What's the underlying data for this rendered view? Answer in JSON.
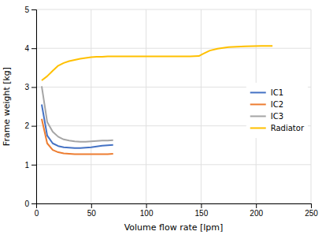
{
  "chart_data": {
    "type": "line",
    "xlabel": "Volume flow rate [lpm]",
    "ylabel": "Frame weight [kg]",
    "xlim": [
      0,
      250
    ],
    "ylim": [
      0,
      5
    ],
    "xticks": [
      0,
      50,
      100,
      150,
      200,
      250
    ],
    "yticks": [
      0,
      1,
      2,
      3,
      4,
      5
    ],
    "grid": true,
    "legend": "right",
    "series": [
      {
        "name": "IC1",
        "color": "#4472c4",
        "x": [
          5,
          10,
          15,
          20,
          25,
          30,
          35,
          40,
          45,
          50,
          55,
          60,
          65,
          70
        ],
        "values": [
          2.55,
          1.75,
          1.55,
          1.48,
          1.45,
          1.44,
          1.43,
          1.43,
          1.44,
          1.45,
          1.47,
          1.49,
          1.5,
          1.51
        ]
      },
      {
        "name": "IC2",
        "color": "#ed7d31",
        "x": [
          5,
          10,
          15,
          20,
          25,
          30,
          35,
          40,
          45,
          50,
          55,
          60,
          65,
          70
        ],
        "values": [
          2.18,
          1.55,
          1.38,
          1.32,
          1.29,
          1.28,
          1.27,
          1.27,
          1.27,
          1.27,
          1.27,
          1.27,
          1.27,
          1.28
        ]
      },
      {
        "name": "IC3",
        "color": "#a5a5a5",
        "x": [
          5,
          10,
          15,
          20,
          25,
          30,
          35,
          40,
          45,
          50,
          55,
          60,
          65,
          70
        ],
        "values": [
          3.02,
          2.1,
          1.85,
          1.72,
          1.65,
          1.62,
          1.6,
          1.59,
          1.59,
          1.6,
          1.61,
          1.62,
          1.62,
          1.63
        ]
      },
      {
        "name": "Radiator",
        "color": "#ffc000",
        "x": [
          5,
          10,
          15,
          20,
          25,
          30,
          35,
          40,
          45,
          50,
          55,
          60,
          65,
          70,
          80,
          100,
          120,
          140,
          148,
          152,
          158,
          165,
          175,
          190,
          205,
          215
        ],
        "values": [
          3.17,
          3.28,
          3.42,
          3.55,
          3.62,
          3.67,
          3.7,
          3.73,
          3.75,
          3.77,
          3.78,
          3.78,
          3.79,
          3.79,
          3.79,
          3.79,
          3.79,
          3.79,
          3.8,
          3.86,
          3.94,
          3.99,
          4.03,
          4.05,
          4.06,
          4.06
        ]
      }
    ]
  }
}
